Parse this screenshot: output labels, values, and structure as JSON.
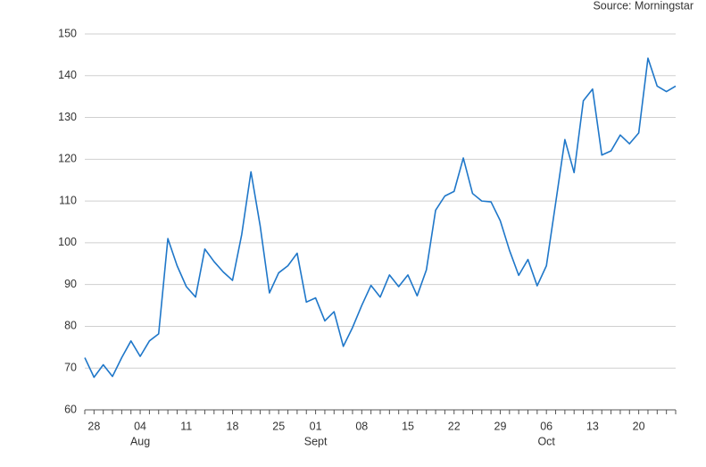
{
  "chart_data": {
    "type": "line",
    "source": "Source: Morningstar",
    "categories": [
      null,
      "28",
      null,
      null,
      null,
      null,
      "04",
      null,
      null,
      null,
      null,
      "11",
      null,
      null,
      null,
      null,
      "18",
      null,
      null,
      null,
      null,
      "25",
      null,
      null,
      null,
      "01",
      null,
      null,
      null,
      null,
      "08",
      null,
      null,
      null,
      null,
      "15",
      null,
      null,
      null,
      null,
      "22",
      null,
      null,
      null,
      null,
      "29",
      null,
      null,
      null,
      null,
      "06",
      null,
      null,
      null,
      null,
      "13",
      null,
      null,
      null,
      null,
      "20",
      null,
      null,
      null,
      null
    ],
    "category_groups": [
      null,
      null,
      null,
      null,
      null,
      null,
      "Aug",
      null,
      null,
      null,
      null,
      null,
      null,
      null,
      null,
      null,
      null,
      null,
      null,
      null,
      null,
      null,
      null,
      null,
      null,
      "Sept",
      null,
      null,
      null,
      null,
      null,
      null,
      null,
      null,
      null,
      null,
      null,
      null,
      null,
      null,
      null,
      null,
      null,
      null,
      null,
      null,
      null,
      null,
      null,
      null,
      "Oct",
      null,
      null,
      null,
      null,
      null,
      null,
      null,
      null,
      null,
      null,
      null,
      null,
      null,
      null
    ],
    "values": [
      72.5,
      67.8,
      70.8,
      68,
      72.5,
      76.5,
      72.8,
      76.5,
      78.2,
      101,
      94.5,
      89.5,
      87,
      98.5,
      95.5,
      93,
      91,
      102,
      117,
      104,
      88,
      92.8,
      94.5,
      97.5,
      85.8,
      86.8,
      81.3,
      83.5,
      75.2,
      79.7,
      85,
      89.8,
      87,
      92.3,
      89.5,
      92.3,
      87.3,
      93.5,
      107.8,
      111.2,
      112.3,
      120.3,
      111.8,
      110,
      109.8,
      105.3,
      98.2,
      92.2,
      96,
      89.7,
      94.5,
      109.5,
      124.7,
      116.8,
      134,
      136.8,
      121,
      122,
      125.8,
      123.7,
      126.3,
      144.2,
      137.5,
      136.2,
      137.5
    ],
    "color": "#1f77c9",
    "ylim": [
      60,
      150
    ],
    "yticks": [
      60,
      70,
      80,
      90,
      100,
      110,
      120,
      130,
      140,
      150
    ],
    "grid": true
  }
}
